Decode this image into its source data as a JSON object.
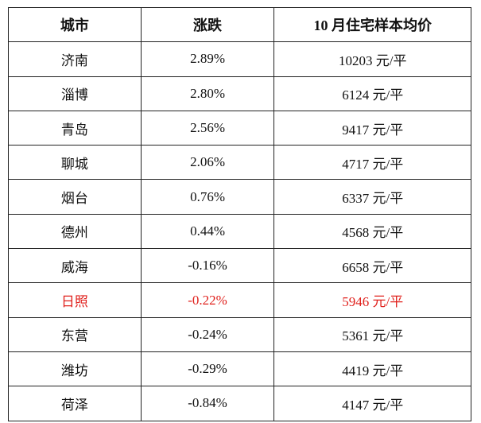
{
  "headers": [
    "城市",
    "涨跌",
    "10 月住宅样本均价"
  ],
  "highlight_color": "#e0201c",
  "rows": [
    {
      "city": "济南",
      "change": "2.89%",
      "price": "10203 元/平",
      "highlight": false
    },
    {
      "city": "淄博",
      "change": "2.80%",
      "price": "6124 元/平",
      "highlight": false
    },
    {
      "city": "青岛",
      "change": "2.56%",
      "price": "9417 元/平",
      "highlight": false
    },
    {
      "city": "聊城",
      "change": "2.06%",
      "price": "4717 元/平",
      "highlight": false
    },
    {
      "city": "烟台",
      "change": "0.76%",
      "price": "6337 元/平",
      "highlight": false
    },
    {
      "city": "德州",
      "change": "0.44%",
      "price": "4568 元/平",
      "highlight": false
    },
    {
      "city": "威海",
      "change": "-0.16%",
      "price": "6658 元/平",
      "highlight": false
    },
    {
      "city": "日照",
      "change": "-0.22%",
      "price": "5946 元/平",
      "highlight": true
    },
    {
      "city": "东营",
      "change": "-0.24%",
      "price": "5361 元/平",
      "highlight": false
    },
    {
      "city": "潍坊",
      "change": "-0.29%",
      "price": "4419 元/平",
      "highlight": false
    },
    {
      "city": "荷泽",
      "change": "-0.84%",
      "price": "4147 元/平",
      "highlight": false
    }
  ]
}
